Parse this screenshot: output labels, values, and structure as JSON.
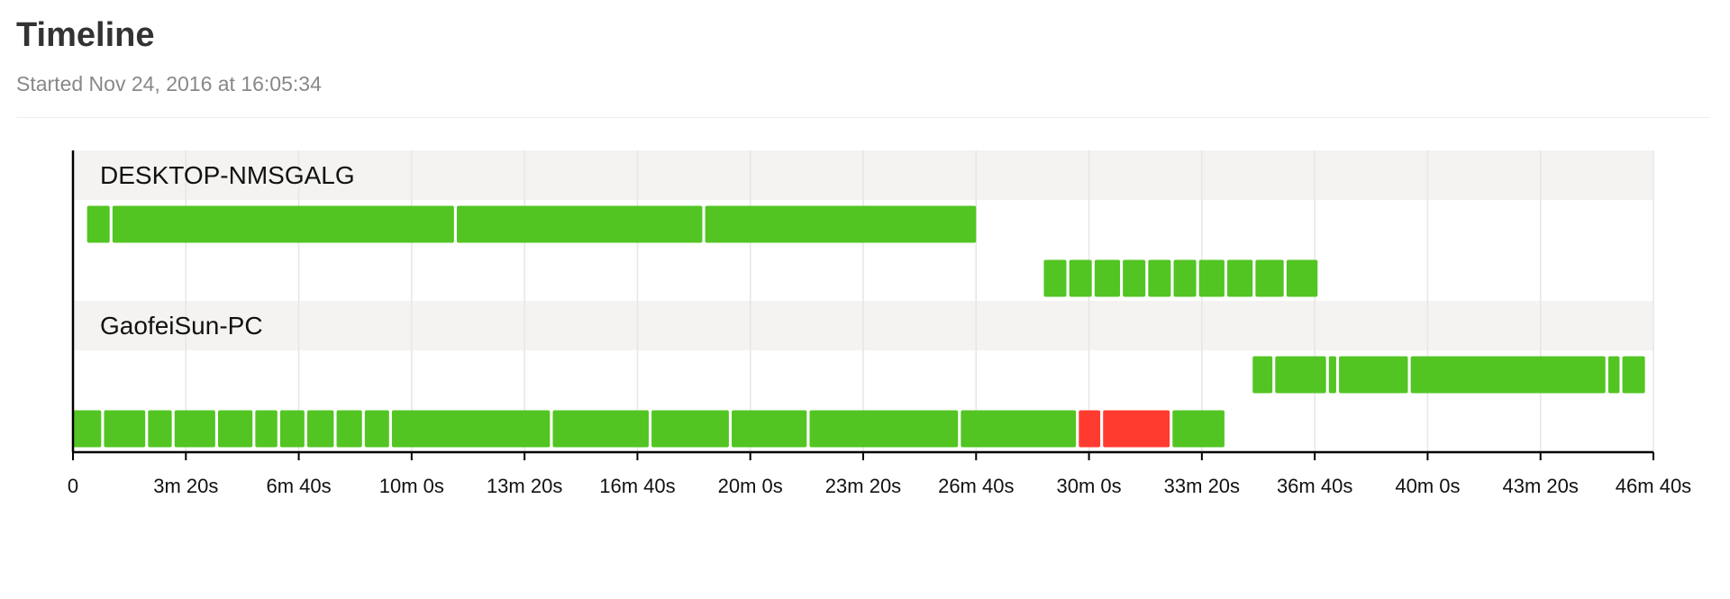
{
  "page": {
    "title": "Timeline",
    "subtitle": "Started Nov 24, 2016 at 16:05:34"
  },
  "colors": {
    "success": "#52c523",
    "failure": "#ff3b30",
    "group_band": "#f4f3f1",
    "grid": "#e6e6e6",
    "axis": "#000000"
  },
  "chart_data": {
    "type": "timeline",
    "title": "",
    "xlabel": "",
    "ylabel": "",
    "x_unit": "seconds",
    "xlim": [
      0,
      2800
    ],
    "x_ticks": [
      0,
      200,
      400,
      600,
      800,
      1000,
      1200,
      1400,
      1600,
      1800,
      2000,
      2200,
      2400,
      2600,
      2800
    ],
    "x_tick_labels": [
      "0",
      "3m 20s",
      "6m 40s",
      "10m 0s",
      "13m 20s",
      "16m 40s",
      "20m 0s",
      "23m 20s",
      "26m 40s",
      "30m 0s",
      "33m 20s",
      "36m 40s",
      "40m 0s",
      "43m 20s",
      "46m 40s"
    ],
    "grid": true,
    "groups": [
      {
        "name": "DESKTOP-NMSGALG",
        "lanes": [
          [
            {
              "start": 25,
              "end": 65,
              "status": "success"
            },
            {
              "start": 70,
              "end": 675,
              "status": "success"
            },
            {
              "start": 680,
              "end": 1115,
              "status": "success"
            },
            {
              "start": 1120,
              "end": 1600,
              "status": "success"
            }
          ],
          [
            {
              "start": 1720,
              "end": 1760,
              "status": "success"
            },
            {
              "start": 1765,
              "end": 1805,
              "status": "success"
            },
            {
              "start": 1810,
              "end": 1855,
              "status": "success"
            },
            {
              "start": 1860,
              "end": 1900,
              "status": "success"
            },
            {
              "start": 1905,
              "end": 1945,
              "status": "success"
            },
            {
              "start": 1950,
              "end": 1990,
              "status": "success"
            },
            {
              "start": 1995,
              "end": 2040,
              "status": "success"
            },
            {
              "start": 2045,
              "end": 2090,
              "status": "success"
            },
            {
              "start": 2095,
              "end": 2145,
              "status": "success"
            },
            {
              "start": 2150,
              "end": 2205,
              "status": "success"
            }
          ]
        ]
      },
      {
        "name": "GaofeiSun-PC",
        "lanes": [
          [
            {
              "start": 2090,
              "end": 2125,
              "status": "success"
            },
            {
              "start": 2130,
              "end": 2220,
              "status": "success"
            },
            {
              "start": 2225,
              "end": 2238,
              "status": "success"
            },
            {
              "start": 2243,
              "end": 2365,
              "status": "success"
            },
            {
              "start": 2370,
              "end": 2715,
              "status": "success"
            },
            {
              "start": 2720,
              "end": 2740,
              "status": "success"
            },
            {
              "start": 2745,
              "end": 2785,
              "status": "success"
            }
          ],
          [
            {
              "start": 0,
              "end": 50,
              "status": "success"
            },
            {
              "start": 55,
              "end": 128,
              "status": "success"
            },
            {
              "start": 133,
              "end": 175,
              "status": "success"
            },
            {
              "start": 180,
              "end": 252,
              "status": "success"
            },
            {
              "start": 257,
              "end": 318,
              "status": "success"
            },
            {
              "start": 323,
              "end": 362,
              "status": "success"
            },
            {
              "start": 367,
              "end": 410,
              "status": "success"
            },
            {
              "start": 415,
              "end": 462,
              "status": "success"
            },
            {
              "start": 467,
              "end": 512,
              "status": "success"
            },
            {
              "start": 517,
              "end": 560,
              "status": "success"
            },
            {
              "start": 565,
              "end": 845,
              "status": "success"
            },
            {
              "start": 850,
              "end": 1020,
              "status": "success"
            },
            {
              "start": 1025,
              "end": 1162,
              "status": "success"
            },
            {
              "start": 1167,
              "end": 1300,
              "status": "success"
            },
            {
              "start": 1305,
              "end": 1568,
              "status": "success"
            },
            {
              "start": 1573,
              "end": 1777,
              "status": "success"
            },
            {
              "start": 1782,
              "end": 1820,
              "status": "failure"
            },
            {
              "start": 1825,
              "end": 1943,
              "status": "failure"
            },
            {
              "start": 1948,
              "end": 2040,
              "status": "success"
            }
          ]
        ]
      }
    ]
  }
}
